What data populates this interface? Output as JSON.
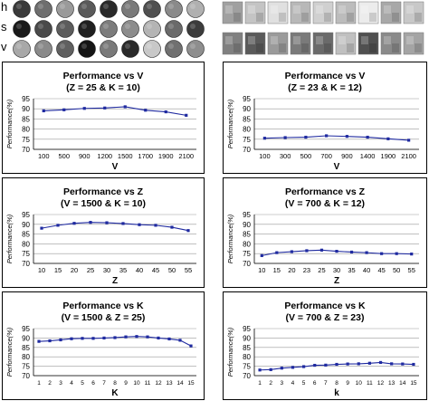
{
  "patch_grid": {
    "row_labels": [
      "h",
      "s",
      "v"
    ],
    "left_circles_shades": [
      [
        "#3a3a3a",
        "#6e6e6e",
        "#9a9a9a",
        "#5a5a5a",
        "#2a2a2a",
        "#7a7a7a",
        "#505050",
        "#8a8a8a",
        "#b0b0b0"
      ],
      [
        "#1a1a1a",
        "#4a4a4a",
        "#5c5c5c",
        "#202020",
        "#7c7c7c",
        "#8c8c8c",
        "#b4b4b4",
        "#6a6a6a",
        "#3c3c3c"
      ],
      [
        "#a8a8a8",
        "#8a8a8a",
        "#606060",
        "#151515",
        "#7a7a7a",
        "#2a2a2a",
        "#c8c8c8",
        "#707070",
        "#8e8e8e"
      ]
    ],
    "right_squares_shades": [
      [
        "#a0a0a0",
        "#c4c4c4",
        "#e0e0e0",
        "#b8b8b8",
        "#d0d0d0",
        "#bcbcbc",
        "#ececec",
        "#a8a8a8",
        "#c8c8c8"
      ],
      [
        "#808080",
        "#5a5a5a",
        "#9a9a9a",
        "#7a7a7a",
        "#6a6a6a",
        "#c0c0c0",
        "#505050",
        "#8a8a8a",
        "#a4a4a4"
      ]
    ]
  },
  "chart_data": [
    {
      "type": "line",
      "title": "Performance vs V",
      "subtitle": "(Z = 25 & K = 10)",
      "xlabel": "V",
      "ylabel": "Performance(%)",
      "categories": [
        "100",
        "500",
        "900",
        "1200",
        "1500",
        "1700",
        "1900",
        "2100"
      ],
      "values": [
        89,
        89.5,
        90.2,
        90.4,
        91,
        89.3,
        88.5,
        86.8
      ],
      "ylim": [
        70,
        95
      ],
      "yticks": [
        70,
        75,
        80,
        85,
        90,
        95
      ],
      "grid": true,
      "line_color": "#1f2aa0"
    },
    {
      "type": "line",
      "title": "Performance vs V",
      "subtitle": "(Z = 23 & K = 12)",
      "xlabel": "V",
      "ylabel": "Performance(%)",
      "categories": [
        "100",
        "300",
        "500",
        "700",
        "900",
        "1400",
        "1900",
        "2100"
      ],
      "values": [
        75.5,
        75.8,
        76,
        76.7,
        76.4,
        76,
        75.2,
        74.5
      ],
      "ylim": [
        70,
        95
      ],
      "yticks": [
        70,
        75,
        80,
        85,
        90,
        95
      ],
      "grid": true,
      "line_color": "#1f2aa0"
    },
    {
      "type": "line",
      "title": "Performance vs Z",
      "subtitle": "(V = 1500 & K = 10)",
      "xlabel": "Z",
      "ylabel": "Performance(%)",
      "categories": [
        "10",
        "15",
        "20",
        "25",
        "30",
        "35",
        "40",
        "45",
        "50",
        "55"
      ],
      "values": [
        88,
        89.5,
        90.5,
        91,
        90.8,
        90.4,
        89.8,
        89.5,
        88.5,
        86.8
      ],
      "ylim": [
        70,
        95
      ],
      "yticks": [
        70,
        75,
        80,
        85,
        90,
        95
      ],
      "grid": true,
      "line_color": "#1f2aa0"
    },
    {
      "type": "line",
      "title": "Performance vs Z",
      "subtitle": "(V = 700 & K = 12)",
      "xlabel": "Z",
      "ylabel": "Performance(%)",
      "categories": [
        "10",
        "15",
        "20",
        "23",
        "25",
        "30",
        "35",
        "40",
        "45",
        "50",
        "55"
      ],
      "values": [
        74,
        75.5,
        76,
        76.5,
        76.8,
        76.2,
        75.8,
        75.5,
        75,
        75,
        74.8
      ],
      "ylim": [
        70,
        95
      ],
      "yticks": [
        70,
        75,
        80,
        85,
        90,
        95
      ],
      "grid": true,
      "line_color": "#1f2aa0"
    },
    {
      "type": "line",
      "title": "Performance vs K",
      "subtitle": "(V = 1500 & Z = 25)",
      "xlabel": "K",
      "ylabel": "Performance(%)",
      "categories": [
        "1",
        "2",
        "3",
        "4",
        "5",
        "6",
        "7",
        "8",
        "9",
        "10",
        "11",
        "12",
        "13",
        "14",
        "15"
      ],
      "values": [
        88.2,
        88.5,
        89,
        89.6,
        89.8,
        89.8,
        90,
        90.2,
        90.6,
        90.8,
        90.6,
        90,
        89.5,
        88.8,
        85.8
      ],
      "ylim": [
        70,
        95
      ],
      "yticks": [
        70,
        75,
        80,
        85,
        90,
        95
      ],
      "grid": true,
      "line_color": "#1f2aa0"
    },
    {
      "type": "line",
      "title": "Performance vs K",
      "subtitle": "(V = 700 & Z = 23)",
      "xlabel": "k",
      "ylabel": "Performance(%)",
      "categories": [
        "1",
        "2",
        "3",
        "4",
        "5",
        "6",
        "7",
        "8",
        "9",
        "10",
        "11",
        "12",
        "13",
        "14",
        "15"
      ],
      "values": [
        73,
        73.2,
        74,
        74.4,
        74.8,
        75.5,
        75.6,
        76,
        76.2,
        76.3,
        76.6,
        77,
        76.3,
        76.2,
        76
      ],
      "ylim": [
        70,
        95
      ],
      "yticks": [
        70,
        75,
        80,
        85,
        90,
        95
      ],
      "grid": true,
      "line_color": "#1f2aa0"
    }
  ]
}
